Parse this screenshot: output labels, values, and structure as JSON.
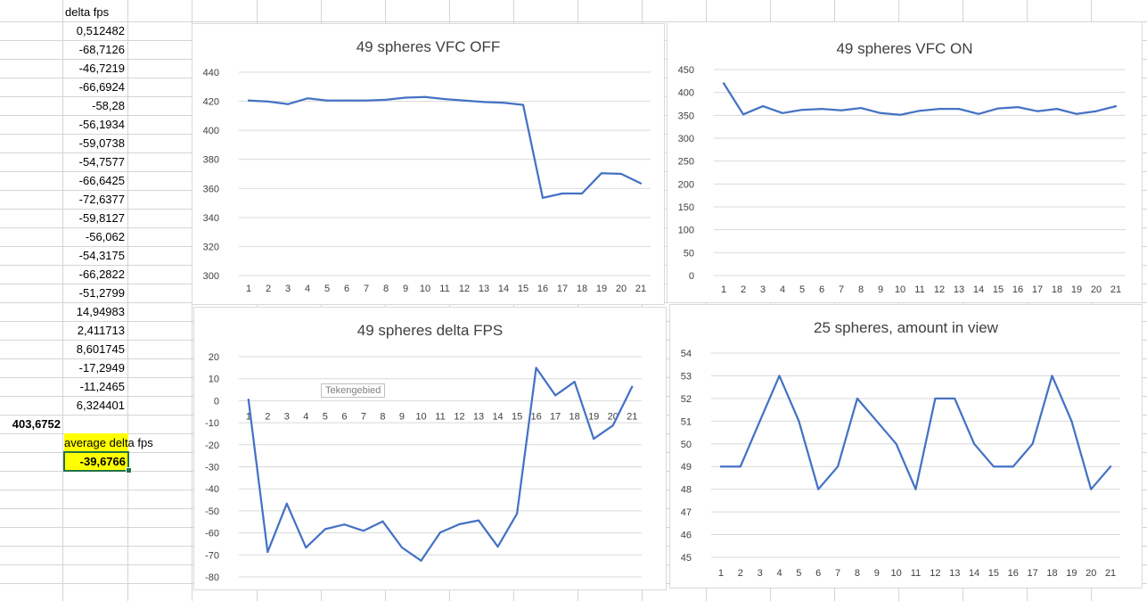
{
  "sheet": {
    "header": "delta fps",
    "values": [
      "0,512482",
      "-68,7126",
      "-46,7219",
      "-66,6924",
      "-58,28",
      "-56,1934",
      "-59,0738",
      "-54,7577",
      "-66,6425",
      "-72,6377",
      "-59,8127",
      "-56,062",
      "-54,3175",
      "-66,2822",
      "-51,2799",
      "14,94983",
      "2,411713",
      "8,601745",
      "-17,2949",
      "-11,2465",
      "6,324401"
    ],
    "left_value": "403,6752",
    "average_label": "average delta fps",
    "average_value": "-39,6766",
    "highlight_color": "#ffff00",
    "selection_color": "#217346"
  },
  "tooltip": "Tekengebied",
  "chart_data": [
    {
      "type": "line",
      "title": "49 spheres VFC OFF",
      "categories": [
        "1",
        "2",
        "3",
        "4",
        "5",
        "6",
        "7",
        "8",
        "9",
        "10",
        "11",
        "12",
        "13",
        "14",
        "15",
        "16",
        "17",
        "18",
        "19",
        "20",
        "21"
      ],
      "values": [
        420.5,
        419.8,
        418,
        422,
        420.5,
        420.5,
        420.5,
        421,
        422.5,
        423,
        421.5,
        420.5,
        419.5,
        419,
        417.5,
        353.5,
        356.5,
        356.5,
        370.5,
        370,
        363.5
      ],
      "ylim": [
        300,
        440
      ],
      "yticks": [
        "300",
        "320",
        "340",
        "360",
        "380",
        "400",
        "420",
        "440"
      ],
      "line_color": "#4472c4"
    },
    {
      "type": "line",
      "title": "49 spheres VFC ON",
      "categories": [
        "1",
        "2",
        "3",
        "4",
        "5",
        "6",
        "7",
        "8",
        "9",
        "10",
        "11",
        "12",
        "13",
        "14",
        "15",
        "16",
        "17",
        "18",
        "19",
        "20",
        "21"
      ],
      "values": [
        420,
        352,
        370,
        355,
        362,
        364,
        361,
        366,
        355,
        351,
        360,
        364,
        364,
        353,
        365,
        368,
        359,
        364,
        353,
        359,
        370
      ],
      "ylim": [
        0,
        450
      ],
      "yticks": [
        "0",
        "50",
        "100",
        "150",
        "200",
        "250",
        "300",
        "350",
        "400",
        "450"
      ],
      "line_color": "#4472c4"
    },
    {
      "type": "line",
      "title": "49 spheres delta FPS",
      "categories": [
        "1",
        "2",
        "3",
        "4",
        "5",
        "6",
        "7",
        "8",
        "9",
        "10",
        "11",
        "12",
        "13",
        "14",
        "15",
        "16",
        "17",
        "18",
        "19",
        "20",
        "21"
      ],
      "values": [
        0.512482,
        -68.7126,
        -46.7219,
        -66.6924,
        -58.28,
        -56.1934,
        -59.0738,
        -54.7577,
        -66.6425,
        -72.6377,
        -59.8127,
        -56.062,
        -54.3175,
        -66.2822,
        -51.2799,
        14.94983,
        2.411713,
        8.601745,
        -17.2949,
        -11.2465,
        6.324401
      ],
      "ylim": [
        -80,
        20
      ],
      "yticks": [
        "-80",
        "-70",
        "-60",
        "-50",
        "-40",
        "-30",
        "-20",
        "-10",
        "0",
        "10",
        "20"
      ],
      "line_color": "#4472c4"
    },
    {
      "type": "line",
      "title": "25 spheres, amount in view",
      "categories": [
        "1",
        "2",
        "3",
        "4",
        "5",
        "6",
        "7",
        "8",
        "9",
        "10",
        "11",
        "12",
        "13",
        "14",
        "15",
        "16",
        "17",
        "18",
        "19",
        "20",
        "21"
      ],
      "values": [
        49,
        49,
        51,
        53,
        51,
        48,
        49,
        52,
        51,
        50,
        48,
        52,
        52,
        50,
        49,
        49,
        50,
        53,
        51,
        48,
        49
      ],
      "ylim": [
        45,
        54
      ],
      "yticks": [
        "45",
        "46",
        "47",
        "48",
        "49",
        "50",
        "51",
        "52",
        "53",
        "54"
      ],
      "line_color": "#4472c4"
    }
  ]
}
